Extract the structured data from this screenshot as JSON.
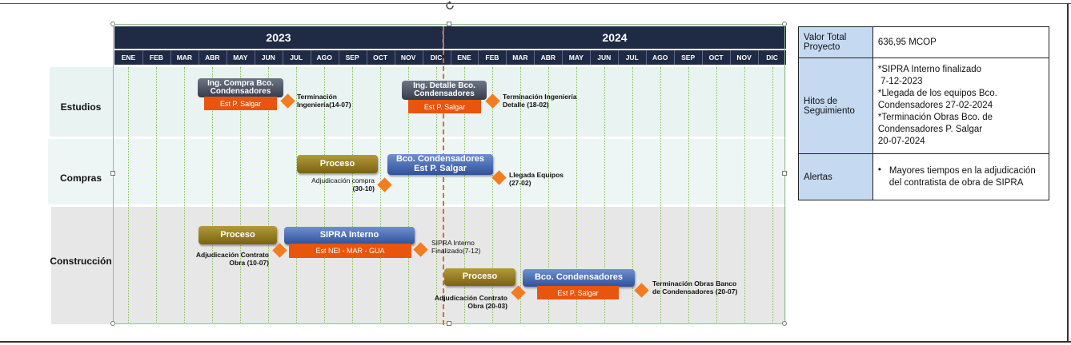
{
  "years": [
    "2023",
    "2024"
  ],
  "months": [
    "ENE",
    "FEB",
    "MAR",
    "ABR",
    "MAY",
    "JUN",
    "JUL",
    "AGO",
    "SEP",
    "OCT",
    "NOV",
    "DIC",
    "ENE",
    "FEB",
    "MAR",
    "ABR",
    "MAY",
    "JUN",
    "JUL",
    "AGO",
    "SEP",
    "OCT",
    "NOV",
    "DIC"
  ],
  "bands": {
    "estudios": "Estudios",
    "compras": "Compras",
    "construccion": "Construcción"
  },
  "bars": {
    "ing_compra": "Ing. Compra Bco. Condensadores",
    "ing_compra_sub": "Est P. Salgar",
    "ing_detalle": "Ing. Detalle Bco. Condensadores",
    "ing_detalle_sub": "Est P. Salgar",
    "compras_proceso": "Proceso",
    "compras_bco": "Bco. Condensadores Est P. Salgar",
    "constr_proceso1": "Proceso",
    "sipra_interno": "SIPRA Interno",
    "sipra_sub": "Est NEI - MAR - GUA",
    "constr_proceso2": "Proceso",
    "constr_bco": "Bco. Condensadores",
    "constr_bco_sub": "Est P. Salgar"
  },
  "milestones": {
    "m1": [
      "Terminación",
      "Ingeniería(14-07)"
    ],
    "m2": [
      "Terminación Ingeniería",
      "Detalle (18-02)"
    ],
    "m3": [
      "Adjudicación compra",
      "(30-10)"
    ],
    "m4": [
      "Llegada Equipos",
      "(27-02)"
    ],
    "m5": [
      "Adjudicación Contrato",
      "Obra (10-07)"
    ],
    "m6": [
      "SIPRA Interno",
      "Finalizado(7-12)"
    ],
    "m7": [
      "Adjudicación Contrato",
      "Obra (20-03)"
    ],
    "m8": [
      "Terminación Obras Banco",
      "de Condensadores (20-07)"
    ]
  },
  "info_table": {
    "valor_label": "Valor Total Proyecto",
    "valor_value": "636,95 MCOP",
    "hitos_label": "Hitos de Seguimiento",
    "hitos_lines": [
      "*SIPRA Interno finalizado",
      " 7-12-2023",
      "*Llegada de los equipos Bco.",
      "Condensadores 27-02-2024",
      "*Terminación Obras Bco. de",
      "Condensadores P. Salgar",
      "20-07-2024"
    ],
    "alertas_label": "Alertas",
    "alertas_bullet": "•",
    "alertas_text": "Mayores tiempos en la adjudicación del contratista de obra de SIPRA"
  },
  "colors": {
    "header": "#1f2a44",
    "band_estudios": "#e9f3f1",
    "band_compras": "#eef6f5",
    "band_construccion": "#e7e7e7",
    "milestone": "#f47c20",
    "today_line": "#e06a1a",
    "table_header": "#c5d9f1"
  },
  "icons": [
    "rotate-handle-icon",
    "milestone-diamond-icon"
  ]
}
